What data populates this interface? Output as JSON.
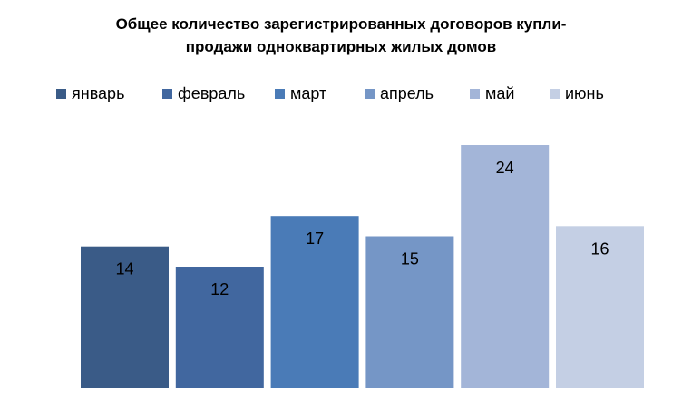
{
  "chart_data": {
    "type": "bar",
    "title_lines": [
      "Общее количество зарегистрированных договоров купли-",
      "продажи одноквартирных жилых домов"
    ],
    "categories": [
      "январь",
      "февраль",
      "март",
      "апрель",
      "май",
      "июнь"
    ],
    "series": [
      {
        "values": [
          14,
          12,
          17,
          15,
          24,
          16
        ]
      }
    ],
    "colors": [
      "#3a5b87",
      "#41679f",
      "#4a7bb7",
      "#7596c6",
      "#a3b5d8",
      "#c4cfe4"
    ],
    "data_labels": [
      "14",
      "12",
      "17",
      "15",
      "24",
      "16"
    ],
    "ylim": [
      0,
      24
    ],
    "grid": false,
    "legend_position": "top"
  }
}
